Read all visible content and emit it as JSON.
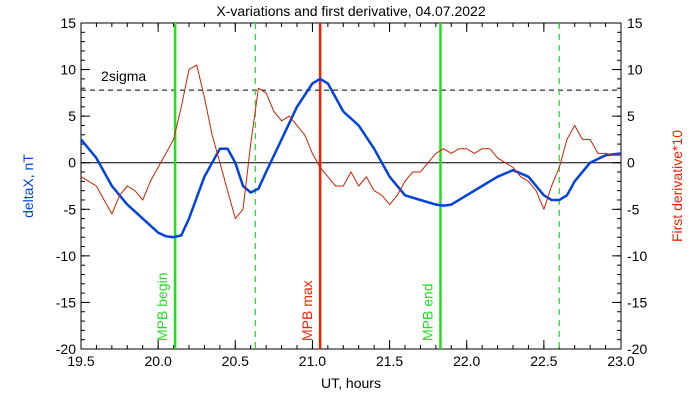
{
  "chart_data": {
    "type": "line",
    "title": "X-variations and first derivative, 04.07.2022",
    "xlabel": "UT, hours",
    "ylabel_left": "deltaX, nT",
    "ylabel_right": "First derivative*10",
    "xlim": [
      19.5,
      23.0
    ],
    "ylim": [
      -20,
      15
    ],
    "x_ticks": [
      19.5,
      20.0,
      20.5,
      21.0,
      21.5,
      22.0,
      22.5,
      23.0
    ],
    "x_tick_labels": [
      "19.5",
      "20.0",
      "20.5",
      "21.0",
      "21.5",
      "22.0",
      "22.5",
      "23.0"
    ],
    "y_ticks": [
      -20,
      -15,
      -10,
      -5,
      0,
      5,
      10,
      15
    ],
    "y_tick_labels": [
      "-20",
      "-15",
      "-10",
      "-5",
      "0",
      "5",
      "10",
      "15"
    ],
    "colors": {
      "deltaX": "#0044dd",
      "derivative": "#cc2200",
      "mpb_green": "#22dd22",
      "mpb_max_red": "#ee2200",
      "axis_label_left": "#0044dd",
      "axis_label_right": "#ee2200"
    },
    "series": [
      {
        "key": "deltaX",
        "x": [
          19.5,
          19.6,
          19.7,
          19.8,
          19.9,
          20.0,
          20.05,
          20.1,
          20.15,
          20.2,
          20.3,
          20.4,
          20.45,
          20.5,
          20.55,
          20.6,
          20.65,
          20.7,
          20.8,
          20.9,
          21.0,
          21.05,
          21.1,
          21.2,
          21.3,
          21.4,
          21.5,
          21.6,
          21.7,
          21.8,
          21.85,
          21.9,
          22.0,
          22.1,
          22.2,
          22.3,
          22.4,
          22.5,
          22.55,
          22.6,
          22.65,
          22.7,
          22.8,
          22.9,
          23.0
        ],
        "values": [
          2.5,
          0.5,
          -2.5,
          -4.5,
          -6.0,
          -7.5,
          -7.9,
          -8.0,
          -7.8,
          -6.0,
          -1.5,
          1.5,
          1.5,
          0.0,
          -2.5,
          -3.2,
          -2.8,
          -1.0,
          2.5,
          6.0,
          8.5,
          9.0,
          8.5,
          5.5,
          4.0,
          1.5,
          -1.5,
          -3.5,
          -4.0,
          -4.5,
          -4.6,
          -4.5,
          -3.5,
          -2.5,
          -1.5,
          -0.8,
          -1.5,
          -3.5,
          -4.0,
          -4.0,
          -3.5,
          -2.0,
          0.0,
          0.8,
          1.0
        ]
      },
      {
        "key": "derivative",
        "x": [
          19.5,
          19.55,
          19.6,
          19.65,
          19.7,
          19.75,
          19.8,
          19.85,
          19.9,
          19.95,
          20.0,
          20.05,
          20.1,
          20.15,
          20.2,
          20.25,
          20.3,
          20.35,
          20.4,
          20.45,
          20.5,
          20.55,
          20.6,
          20.65,
          20.7,
          20.75,
          20.8,
          20.85,
          20.9,
          20.95,
          21.0,
          21.05,
          21.1,
          21.15,
          21.2,
          21.25,
          21.3,
          21.35,
          21.4,
          21.45,
          21.5,
          21.55,
          21.6,
          21.65,
          21.7,
          21.75,
          21.8,
          21.85,
          21.9,
          21.95,
          22.0,
          22.05,
          22.1,
          22.15,
          22.2,
          22.25,
          22.3,
          22.35,
          22.4,
          22.45,
          22.5,
          22.55,
          22.6,
          22.65,
          22.7,
          22.75,
          22.8,
          22.85,
          22.9,
          22.95,
          23.0
        ],
        "values": [
          -1.5,
          -2.0,
          -2.5,
          -4.0,
          -5.5,
          -3.5,
          -2.5,
          -3.0,
          -4.0,
          -2.0,
          -0.5,
          1.0,
          2.5,
          6.0,
          10.0,
          10.5,
          7.0,
          3.0,
          0.0,
          -3.0,
          -6.0,
          -5.0,
          2.0,
          8.0,
          7.5,
          5.5,
          4.5,
          5.0,
          4.0,
          3.0,
          1.0,
          -0.5,
          -1.5,
          -2.5,
          -2.5,
          -1.0,
          -2.5,
          -1.5,
          -3.0,
          -3.5,
          -4.5,
          -3.5,
          -2.0,
          -1.0,
          -1.0,
          0.0,
          1.0,
          1.5,
          1.0,
          1.5,
          1.5,
          1.0,
          1.5,
          1.5,
          0.5,
          0.0,
          -0.5,
          -1.5,
          -2.0,
          -3.0,
          -5.0,
          -2.5,
          -0.5,
          2.5,
          4.0,
          2.5,
          2.5,
          1.0,
          1.0,
          0.8,
          0.8
        ]
      }
    ],
    "threshold": {
      "label": "2sigma",
      "value": 7.8
    },
    "markers": [
      {
        "x": 20.11,
        "label": "MPB begin",
        "color": "#22dd22",
        "style": "solid"
      },
      {
        "x": 20.63,
        "label": "",
        "color": "#22dd22",
        "style": "dashed"
      },
      {
        "x": 21.05,
        "label": "MPB max",
        "color": "#ee2200",
        "style": "solid"
      },
      {
        "x": 21.83,
        "label": "MPB end",
        "color": "#22dd22",
        "style": "solid"
      },
      {
        "x": 22.6,
        "label": "",
        "color": "#22dd22",
        "style": "dashed"
      }
    ],
    "grid": false
  }
}
